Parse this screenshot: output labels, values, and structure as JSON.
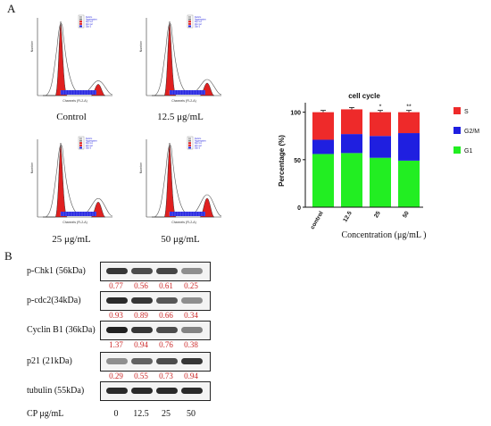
{
  "panels": {
    "a": "A",
    "b": "B"
  },
  "histograms": [
    {
      "caption": "Control",
      "xaxis": "Channels (FL2-A)",
      "yaxis": "Number",
      "legend": [
        "Debris",
        "Aggregates",
        "Dip G1",
        "Dip G2",
        "Dip S"
      ]
    },
    {
      "caption": "12.5 μg/mL",
      "xaxis": "Channels (FL2-A)",
      "yaxis": "Number",
      "legend": [
        "Debris",
        "Aggregates",
        "Dip G1",
        "Dip G2",
        "Dip S"
      ]
    },
    {
      "caption": "25 μg/mL",
      "xaxis": "Channels (FL2-A)",
      "yaxis": "Number",
      "legend": [
        "Debris",
        "Aggregates",
        "Dip G1",
        "Dip G2",
        "Dip S"
      ]
    },
    {
      "caption": "50 μg/mL",
      "xaxis": "Channels (FL2-A)",
      "yaxis": "Number",
      "legend": [
        "Debris",
        "Aggregates",
        "Dip G1",
        "Dip G2",
        "Dip S"
      ]
    }
  ],
  "chart_data": {
    "type": "bar",
    "stacked": true,
    "title": "cell cycle",
    "xlabel": "Concentration (μg/mL )",
    "ylabel": "Percentage (%)",
    "categories": [
      "control",
      "12.5",
      "25",
      "50"
    ],
    "ylim": [
      0,
      110
    ],
    "yticks": [
      0,
      50,
      100
    ],
    "series": [
      {
        "name": "G1",
        "color": "#22ee22",
        "values": [
          56,
          57,
          52,
          49
        ]
      },
      {
        "name": "G2/M",
        "color": "#1f1fe0",
        "values": [
          15,
          20,
          23,
          29
        ]
      },
      {
        "name": "S",
        "color": "#ee2a2a",
        "values": [
          29,
          26,
          25,
          22
        ]
      }
    ],
    "significance": [
      "",
      "",
      "*",
      "**"
    ],
    "legend_position": "right"
  },
  "blot": {
    "rows": [
      {
        "label": "p-Chk1 (56kDa)",
        "values": [
          "0.77",
          "0.56",
          "0.61",
          "0.25"
        ]
      },
      {
        "label": "p-cdc2(34kDa)",
        "values": [
          "0.93",
          "0.89",
          "0.66",
          "0.34"
        ]
      },
      {
        "label": "Cyclin B1 (36kDa)",
        "values": [
          "1.37",
          "0.94",
          "0.76",
          "0.38"
        ]
      },
      {
        "label": "p21 (21kDa)",
        "values": [
          "0.29",
          "0.55",
          "0.73",
          "0.94"
        ]
      },
      {
        "label": "tubulin (55kDa)",
        "values": []
      }
    ],
    "cp_label": "CP μg/mL",
    "cp_values": [
      "0",
      "12.5",
      "25",
      "50"
    ]
  }
}
